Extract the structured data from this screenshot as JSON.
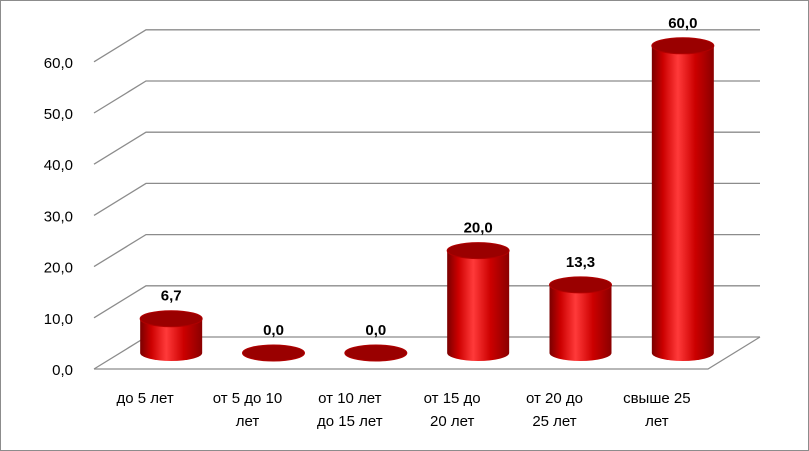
{
  "chart_data": {
    "type": "bar",
    "style": "3d-cylinder",
    "categories": [
      [
        "до 5 лет"
      ],
      [
        "от 5 до 10",
        "лет"
      ],
      [
        "от 10 лет",
        "до 15 лет"
      ],
      [
        "от 15 до",
        "20 лет"
      ],
      [
        "от 20 до",
        "25 лет"
      ],
      [
        "свыше 25",
        "лет"
      ]
    ],
    "values": [
      6.7,
      0.0,
      0.0,
      20.0,
      13.3,
      60.0
    ],
    "data_labels": [
      "6,7",
      "0,0",
      "0,0",
      "20,0",
      "13,3",
      "60,0"
    ],
    "yticks": [
      "0,0",
      "10,0",
      "20,0",
      "30,0",
      "40,0",
      "50,0",
      "60,0"
    ],
    "ylim": [
      0,
      60
    ],
    "title": "",
    "xlabel": "",
    "ylabel": "",
    "grid": true,
    "legend": "none",
    "colors": {
      "bar_body": "#cc0000",
      "bar_highlight": "#ff3a3a",
      "bar_shadow": "#7a0000",
      "bar_top": "#9a0000",
      "grid": "#8c8c8c"
    }
  }
}
